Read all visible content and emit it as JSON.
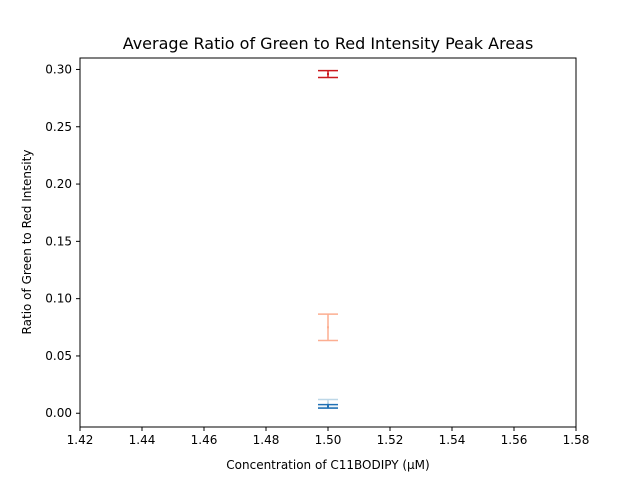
{
  "chart_data": {
    "type": "scatter",
    "title": "Average Ratio of Green to Red Intensity Peak Areas",
    "xlabel": "Concentration of C11BODIPY (μM)",
    "ylabel": "Ratio of Green to Red Intensity",
    "xlim": [
      1.42,
      1.58
    ],
    "ylim": [
      -0.012,
      0.31
    ],
    "x_ticks": [
      "1.42",
      "1.44",
      "1.46",
      "1.48",
      "1.50",
      "1.52",
      "1.54",
      "1.56",
      "1.58"
    ],
    "y_ticks": [
      "0.00",
      "0.05",
      "0.10",
      "0.15",
      "0.20",
      "0.25",
      "0.30"
    ],
    "grid": false,
    "markers": "errorbar-only",
    "series": [
      {
        "x": 1.5,
        "y": 0.296,
        "err": 0.003,
        "color": "#cb181d"
      },
      {
        "x": 1.5,
        "y": 0.075,
        "err": 0.0115,
        "color": "#fcae91"
      },
      {
        "x": 1.5,
        "y": 0.0085,
        "err": 0.0035,
        "color": "#bdd7e7"
      },
      {
        "x": 1.5,
        "y": 0.006,
        "err": 0.0015,
        "color": "#2171b5"
      }
    ]
  }
}
